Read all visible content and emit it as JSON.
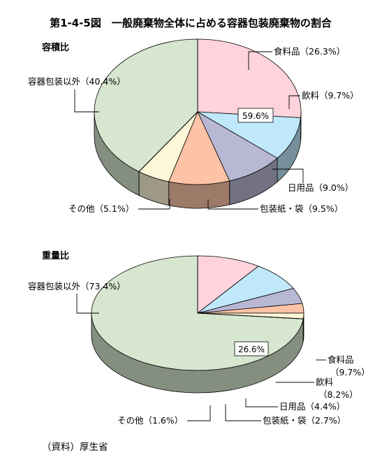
{
  "title": "第1-4-5図　一般廃棄物全体に占める容器包装廃棄物の割合",
  "source": "（資料）厚生省",
  "chart_data": [
    {
      "type": "pie",
      "title": "容積比",
      "container_total_label": "59.6%",
      "slices": [
        {
          "name": "食料品",
          "label": "食料品（26.3%）",
          "value": 26.3,
          "color": "#FFD3DC"
        },
        {
          "name": "飲料",
          "label": "飲料（9.7%）",
          "value": 9.7,
          "color": "#BFE8FA"
        },
        {
          "name": "日用品",
          "label": "日用品（9.0%）",
          "value": 9.0,
          "color": "#B8B8D4"
        },
        {
          "name": "包装紙・袋",
          "label": "包装紙・袋（9.5%）",
          "value": 9.5,
          "color": "#FDC3A6"
        },
        {
          "name": "その他",
          "label": "その他（5.1%）",
          "value": 5.1,
          "color": "#FEF6D8"
        },
        {
          "name": "容器包装以外",
          "label": "容器包装以外（40.4%）",
          "value": 40.4,
          "color": "#D6E6CF"
        }
      ]
    },
    {
      "type": "pie",
      "title": "重量比",
      "container_total_label": "26.6%",
      "slices": [
        {
          "name": "食料品",
          "label": "食料品",
          "pct_label": "（9.7%）",
          "value": 9.7,
          "color": "#FFD3DC"
        },
        {
          "name": "飲料",
          "label": "飲料",
          "pct_label": "（8.2%）",
          "value": 8.2,
          "color": "#BFE8FA"
        },
        {
          "name": "日用品",
          "label": "日用品（4.4%）",
          "value": 4.4,
          "color": "#B8B8D4"
        },
        {
          "name": "包装紙・袋",
          "label": "包装紙・袋（2.7%）",
          "value": 2.7,
          "color": "#FDC3A6"
        },
        {
          "name": "その他",
          "label": "その他（1.6%）",
          "value": 1.6,
          "color": "#FEF6D8"
        },
        {
          "name": "容器包装以外",
          "label": "容器包装以外（73.4%）",
          "value": 73.4,
          "color": "#D6E6CF"
        }
      ]
    }
  ]
}
